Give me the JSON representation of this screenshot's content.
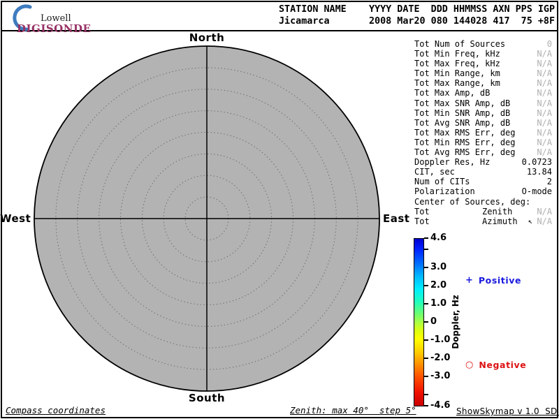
{
  "logo": {
    "line1": "Lowell",
    "line2": "DIGISONDE",
    "crescent_color": "#3f7cbf",
    "digisonde_color": "#993366"
  },
  "header": {
    "line1": "STATION NAME    YYYY DATE  DDD HHMMSS AXN PPS IGP",
    "line2": "Jicamarca       2008 Mar20 080 144028 417  75 +8F"
  },
  "skymap": {
    "fill_color": "#b3b3b3",
    "ring_color": "#666666",
    "zenith_max_deg": 40,
    "zenith_step_deg": 5,
    "compass": {
      "north": "North",
      "south": "South",
      "east": "East",
      "west": "West"
    }
  },
  "stats": {
    "rows": [
      {
        "label": "Tot Num of Sources",
        "value": "0",
        "muted": true
      },
      {
        "label": "Tot Min Freq, kHz",
        "value": "N/A",
        "muted": true
      },
      {
        "label": "Tot Max Freq, kHz",
        "value": "N/A",
        "muted": true
      },
      {
        "label": "Tot Min Range, km",
        "value": "N/A",
        "muted": true
      },
      {
        "label": "Tot Max Range, km",
        "value": "N/A",
        "muted": true
      },
      {
        "label": "Tot Max Amp, dB",
        "value": "N/A",
        "muted": true
      },
      {
        "label": "Tot Max SNR Amp, dB",
        "value": "N/A",
        "muted": true
      },
      {
        "label": "Tot Min SNR Amp, dB",
        "value": "N/A",
        "muted": true
      },
      {
        "label": "Tot Avg SNR Amp, dB",
        "value": "N/A",
        "muted": true
      },
      {
        "label": "Tot Max RMS Err, deg",
        "value": "N/A",
        "muted": true
      },
      {
        "label": "Tot Min RMS Err, deg",
        "value": "N/A",
        "muted": true
      },
      {
        "label": "Tot Avg RMS Err, deg",
        "value": "N/A",
        "muted": true
      },
      {
        "label": "Doppler Res, Hz",
        "value": "0.0723",
        "muted": false
      },
      {
        "label": "CIT, sec",
        "value": "13.84",
        "muted": false
      },
      {
        "label": "Num of CITs",
        "value": "2",
        "muted": false
      },
      {
        "label": "Polarization",
        "value": "O-mode",
        "muted": false
      },
      {
        "label": "Center of Sources, deg:",
        "value": "",
        "muted": false
      },
      {
        "label": "Tot",
        "sub": "Zenith",
        "value": "N/A",
        "muted": true
      },
      {
        "label": "Tot",
        "sub": "Azimuth",
        "value": "N/A",
        "muted": true,
        "cursor": true
      }
    ]
  },
  "cursor_glyph": "↖",
  "colorbar": {
    "title": "Doppler, Hz",
    "max": 4.6,
    "min": -4.6,
    "ticks": [
      {
        "value": 4.6,
        "label": "4.6"
      },
      {
        "value": 4.0,
        "label": ""
      },
      {
        "value": 3.0,
        "label": "3.0"
      },
      {
        "value": 2.0,
        "label": "2.0"
      },
      {
        "value": 1.0,
        "label": "1.0"
      },
      {
        "value": 0,
        "label": "0"
      },
      {
        "value": -1.0,
        "label": "-1.0"
      },
      {
        "value": -2.0,
        "label": "-2.0"
      },
      {
        "value": -3.0,
        "label": "-3.0"
      },
      {
        "value": -4.0,
        "label": ""
      },
      {
        "value": -4.6,
        "label": "-4.6"
      }
    ],
    "gradient": [
      [
        0,
        "#0000cd"
      ],
      [
        6,
        "#0020ff"
      ],
      [
        14,
        "#0066ff"
      ],
      [
        22,
        "#00b4ff"
      ],
      [
        30,
        "#00eeff"
      ],
      [
        38,
        "#22ffbb"
      ],
      [
        46,
        "#77ff66"
      ],
      [
        50,
        "#aaff44"
      ],
      [
        55,
        "#ddff11"
      ],
      [
        60,
        "#ffff00"
      ],
      [
        68,
        "#ffcc00"
      ],
      [
        75,
        "#ff9100"
      ],
      [
        83,
        "#ff4e00"
      ],
      [
        92,
        "#f01000"
      ],
      [
        100,
        "#c80000"
      ]
    ]
  },
  "legend": {
    "positive": {
      "marker": "+",
      "label": "Positive",
      "color": "#1a1adf"
    },
    "negative": {
      "marker": "○",
      "label": "Negative",
      "color": "#dd1111"
    }
  },
  "footer": {
    "left": "Compass coordinates",
    "center": "Zenith: max 40°  step 5°",
    "right": "ShowSkymap v 1.0  SD v 4.2"
  },
  "chart_data": {
    "type": "scatter",
    "subtype": "polar_skymap",
    "points": [],
    "num_sources_plotted": 0,
    "polar_axis": {
      "zenith_max_deg": 40,
      "zenith_step_deg": 5,
      "compass_labels": [
        "North",
        "East",
        "South",
        "West"
      ],
      "grid": "dotted concentric circles with crosshair"
    },
    "colorbar": {
      "label": "Doppler, Hz",
      "min": -4.6,
      "max": 4.6,
      "tick_labels": [
        "4.6",
        "3.0",
        "2.0",
        "1.0",
        "0",
        "-1.0",
        "-2.0",
        "-3.0",
        "-4.6"
      ],
      "scheme": "blue(positive) to red(negative) rainbow"
    }
  }
}
